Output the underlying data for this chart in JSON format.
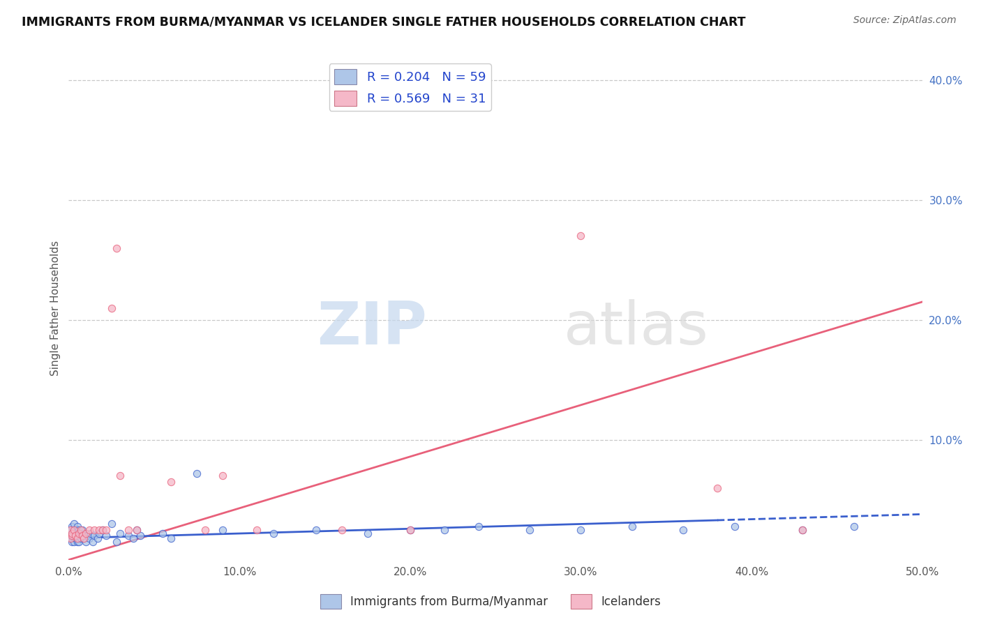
{
  "title": "IMMIGRANTS FROM BURMA/MYANMAR VS ICELANDER SINGLE FATHER HOUSEHOLDS CORRELATION CHART",
  "source": "Source: ZipAtlas.com",
  "ylabel": "Single Father Households",
  "xlim": [
    0.0,
    0.5
  ],
  "ylim": [
    0.0,
    0.42
  ],
  "blue_R": 0.204,
  "blue_N": 59,
  "pink_R": 0.569,
  "pink_N": 31,
  "blue_color": "#aec6e8",
  "pink_color": "#f5b8c8",
  "blue_line_color": "#3a5fcd",
  "pink_line_color": "#e8607a",
  "blue_scatter_x": [
    0.001,
    0.001,
    0.002,
    0.002,
    0.002,
    0.003,
    0.003,
    0.003,
    0.003,
    0.004,
    0.004,
    0.004,
    0.005,
    0.005,
    0.005,
    0.005,
    0.006,
    0.006,
    0.006,
    0.007,
    0.007,
    0.008,
    0.008,
    0.009,
    0.01,
    0.01,
    0.011,
    0.012,
    0.013,
    0.014,
    0.015,
    0.017,
    0.018,
    0.02,
    0.022,
    0.025,
    0.028,
    0.03,
    0.035,
    0.038,
    0.04,
    0.042,
    0.055,
    0.06,
    0.075,
    0.09,
    0.12,
    0.145,
    0.175,
    0.2,
    0.22,
    0.24,
    0.27,
    0.3,
    0.33,
    0.36,
    0.39,
    0.43,
    0.46
  ],
  "blue_scatter_y": [
    0.025,
    0.018,
    0.022,
    0.015,
    0.028,
    0.02,
    0.015,
    0.025,
    0.03,
    0.018,
    0.022,
    0.025,
    0.02,
    0.015,
    0.025,
    0.028,
    0.02,
    0.015,
    0.025,
    0.022,
    0.018,
    0.025,
    0.02,
    0.018,
    0.015,
    0.022,
    0.02,
    0.018,
    0.022,
    0.015,
    0.02,
    0.018,
    0.022,
    0.025,
    0.02,
    0.03,
    0.015,
    0.022,
    0.02,
    0.018,
    0.025,
    0.02,
    0.022,
    0.018,
    0.072,
    0.025,
    0.022,
    0.025,
    0.022,
    0.025,
    0.025,
    0.028,
    0.025,
    0.025,
    0.028,
    0.025,
    0.028,
    0.025,
    0.028
  ],
  "pink_scatter_x": [
    0.001,
    0.001,
    0.002,
    0.002,
    0.003,
    0.004,
    0.005,
    0.006,
    0.007,
    0.008,
    0.009,
    0.01,
    0.012,
    0.015,
    0.018,
    0.02,
    0.022,
    0.025,
    0.028,
    0.03,
    0.035,
    0.04,
    0.06,
    0.08,
    0.09,
    0.11,
    0.16,
    0.2,
    0.3,
    0.38,
    0.43
  ],
  "pink_scatter_y": [
    0.018,
    0.025,
    0.02,
    0.022,
    0.025,
    0.02,
    0.018,
    0.022,
    0.025,
    0.02,
    0.018,
    0.022,
    0.025,
    0.025,
    0.025,
    0.025,
    0.025,
    0.21,
    0.26,
    0.07,
    0.025,
    0.025,
    0.065,
    0.025,
    0.07,
    0.025,
    0.025,
    0.025,
    0.27,
    0.06,
    0.025
  ],
  "pink_line_x0": 0.0,
  "pink_line_y0": 0.0,
  "pink_line_x1": 0.5,
  "pink_line_y1": 0.215,
  "blue_line_solid_x0": 0.0,
  "blue_line_solid_y0": 0.018,
  "blue_line_solid_x1": 0.38,
  "blue_line_solid_y1": 0.033,
  "blue_line_dash_x0": 0.38,
  "blue_line_dash_y0": 0.033,
  "blue_line_dash_x1": 0.5,
  "blue_line_dash_y1": 0.038,
  "watermark_zip": "ZIP",
  "watermark_atlas": "atlas",
  "legend_label_blue": "Immigrants from Burma/Myanmar",
  "legend_label_pink": "Icelanders",
  "background_color": "#ffffff",
  "grid_color": "#c8c8c8"
}
